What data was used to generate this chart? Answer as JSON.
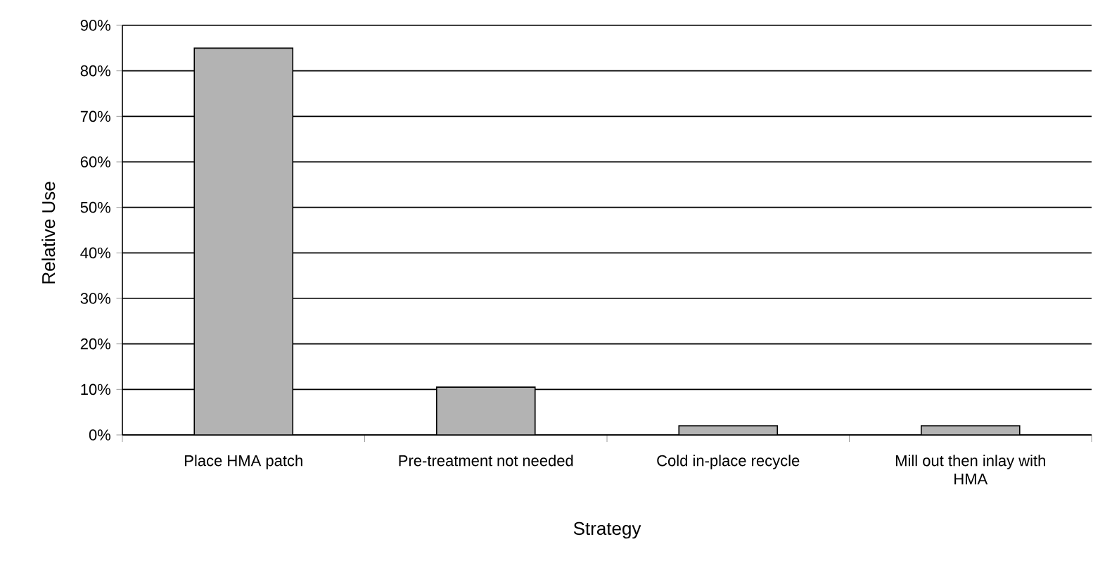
{
  "chart_data": {
    "type": "bar",
    "xlabel": "Strategy",
    "ylabel": "Relative Use",
    "categories": [
      "Place HMA patch",
      "Pre-treatment not needed",
      "Cold in-place recycle",
      "Mill out then inlay with HMA"
    ],
    "values": [
      85,
      10.5,
      2,
      2
    ],
    "color": "#b3b3b3",
    "ylim": [
      0,
      90
    ],
    "yticks": [
      {
        "value": 0,
        "label": "0%"
      },
      {
        "value": 10,
        "label": "10%"
      },
      {
        "value": 20,
        "label": "20%"
      },
      {
        "value": 30,
        "label": "30%"
      },
      {
        "value": 40,
        "label": "40%"
      },
      {
        "value": 50,
        "label": "50%"
      },
      {
        "value": 60,
        "label": "60%"
      },
      {
        "value": 70,
        "label": "70%"
      },
      {
        "value": 80,
        "label": "80%"
      },
      {
        "value": 90,
        "label": "90%"
      }
    ],
    "grid": "y"
  }
}
